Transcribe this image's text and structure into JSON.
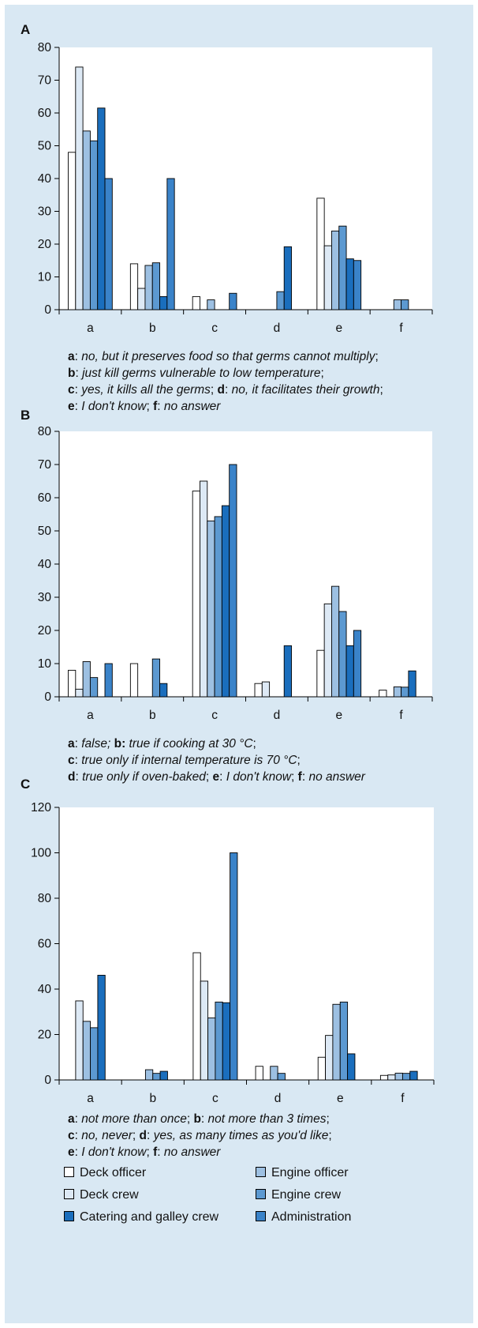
{
  "legend": [
    {
      "name": "Deck officer",
      "color": "#ffffff"
    },
    {
      "name": "Deck crew",
      "color": "#dde9f5"
    },
    {
      "name": "Engine officer",
      "color": "#9dc0e2"
    },
    {
      "name": "Engine crew",
      "color": "#5c99d1"
    },
    {
      "name": "Catering and galley crew",
      "color": "#1a6ebd"
    },
    {
      "name": "Administration",
      "color": "#3a83c9"
    }
  ],
  "chart_data": [
    {
      "label": "A",
      "type": "bar",
      "categories": [
        "a",
        "b",
        "c",
        "d",
        "e",
        "f"
      ],
      "ylim": [
        0,
        80
      ],
      "yticks": [
        0,
        10,
        20,
        30,
        40,
        50,
        60,
        70,
        80
      ],
      "series": [
        {
          "name": "Deck officer",
          "values": [
            48,
            14,
            4,
            0,
            34,
            0
          ]
        },
        {
          "name": "Deck crew",
          "values": [
            74,
            6.5,
            0,
            0,
            19.5,
            0
          ]
        },
        {
          "name": "Engine officer",
          "values": [
            54.5,
            13.5,
            3,
            0,
            24,
            3
          ]
        },
        {
          "name": "Engine crew",
          "values": [
            51.5,
            14.3,
            0,
            5.5,
            25.5,
            3
          ]
        },
        {
          "name": "Catering and galley crew",
          "values": [
            61.5,
            4,
            0,
            19.2,
            15.5,
            0
          ]
        },
        {
          "name": "Administration",
          "values": [
            40,
            40,
            5,
            0,
            15,
            0
          ]
        }
      ],
      "caption": [
        [
          {
            "b": "a"
          },
          {
            "t": ": "
          },
          {
            "i": "no, but it preserves food so that germs cannot multiply"
          },
          {
            "t": ";"
          }
        ],
        [
          {
            "b": "b"
          },
          {
            "t": ": "
          },
          {
            "i": "just kill germs vulnerable to low temperature"
          },
          {
            "t": ";"
          }
        ],
        [
          {
            "b": "c"
          },
          {
            "t": ": "
          },
          {
            "i": "yes, it kills all the germs"
          },
          {
            "t": "; "
          },
          {
            "b": "d"
          },
          {
            "t": ": "
          },
          {
            "i": "no, it facilitates their growth"
          },
          {
            "t": ";"
          }
        ],
        [
          {
            "b": "e"
          },
          {
            "t": ": "
          },
          {
            "i": "I don't know"
          },
          {
            "t": "; "
          },
          {
            "b": "f"
          },
          {
            "t": ": "
          },
          {
            "i": "no answer"
          }
        ]
      ]
    },
    {
      "label": "B",
      "type": "bar",
      "categories": [
        "a",
        "b",
        "c",
        "d",
        "e",
        "f"
      ],
      "ylim": [
        0,
        80
      ],
      "yticks": [
        0,
        10,
        20,
        30,
        40,
        50,
        60,
        70,
        80
      ],
      "series": [
        {
          "name": "Deck officer",
          "values": [
            8,
            10,
            62,
            4,
            14,
            2
          ]
        },
        {
          "name": "Deck crew",
          "values": [
            2.3,
            0,
            65,
            4.5,
            28,
            0
          ]
        },
        {
          "name": "Engine officer",
          "values": [
            10.6,
            0,
            53,
            0,
            33.3,
            3
          ]
        },
        {
          "name": "Engine crew",
          "values": [
            5.8,
            11.4,
            54.3,
            0,
            25.7,
            2.9
          ]
        },
        {
          "name": "Catering and galley crew",
          "values": [
            0,
            4,
            57.6,
            15.4,
            15.4,
            7.8
          ]
        },
        {
          "name": "Administration",
          "values": [
            10,
            0,
            70,
            0,
            20,
            0
          ]
        }
      ],
      "caption": [
        [
          {
            "b": "a"
          },
          {
            "t": ": "
          },
          {
            "i": "false; "
          },
          {
            "b": "b:"
          },
          {
            "i": " true if cooking at 30 °C"
          },
          {
            "t": ";"
          }
        ],
        [
          {
            "b": "c"
          },
          {
            "t": ": "
          },
          {
            "i": "true only if internal temperature is 70 °C"
          },
          {
            "t": ";"
          }
        ],
        [
          {
            "b": "d"
          },
          {
            "t": ": "
          },
          {
            "i": "true only if oven-baked"
          },
          {
            "t": "; "
          },
          {
            "b": "e"
          },
          {
            "t": ": "
          },
          {
            "i": "I don't know"
          },
          {
            "t": "; "
          },
          {
            "b": "f"
          },
          {
            "t": ": "
          },
          {
            "i": "no answer"
          }
        ]
      ]
    },
    {
      "label": "C",
      "type": "bar",
      "categories": [
        "a",
        "b",
        "c",
        "d",
        "e",
        "f"
      ],
      "ylim": [
        0,
        120
      ],
      "yticks": [
        0,
        20,
        40,
        60,
        80,
        100,
        120
      ],
      "series": [
        {
          "name": "Deck officer",
          "values": [
            0,
            0,
            56,
            6,
            10,
            2
          ]
        },
        {
          "name": "Deck crew",
          "values": [
            34.8,
            0,
            43.5,
            0,
            19.6,
            2.2
          ]
        },
        {
          "name": "Engine officer",
          "values": [
            25.8,
            4.5,
            27.3,
            6,
            33.3,
            3
          ]
        },
        {
          "name": "Engine crew",
          "values": [
            23,
            2.9,
            34.3,
            2.9,
            34.3,
            2.9
          ]
        },
        {
          "name": "Catering and galley crew",
          "values": [
            46.1,
            3.8,
            34,
            0,
            11.5,
            3.8
          ]
        },
        {
          "name": "Administration",
          "values": [
            0,
            0,
            100,
            0,
            0,
            0
          ]
        }
      ],
      "caption": [
        [
          {
            "b": "a"
          },
          {
            "t": ": "
          },
          {
            "i": "not more than once"
          },
          {
            "t": "; "
          },
          {
            "b": "b"
          },
          {
            "t": ": "
          },
          {
            "i": "not more than 3 times"
          },
          {
            "t": ";"
          }
        ],
        [
          {
            "b": "c"
          },
          {
            "t": ": "
          },
          {
            "i": "no, never"
          },
          {
            "t": "; "
          },
          {
            "b": "d"
          },
          {
            "t": ": "
          },
          {
            "i": "yes, as many times as you'd like"
          },
          {
            "t": ";"
          }
        ],
        [
          {
            "b": "e"
          },
          {
            "t": ": "
          },
          {
            "i": "I don't know"
          },
          {
            "t": "; "
          },
          {
            "b": "f"
          },
          {
            "t": ": "
          },
          {
            "i": "no answer"
          }
        ]
      ]
    }
  ]
}
